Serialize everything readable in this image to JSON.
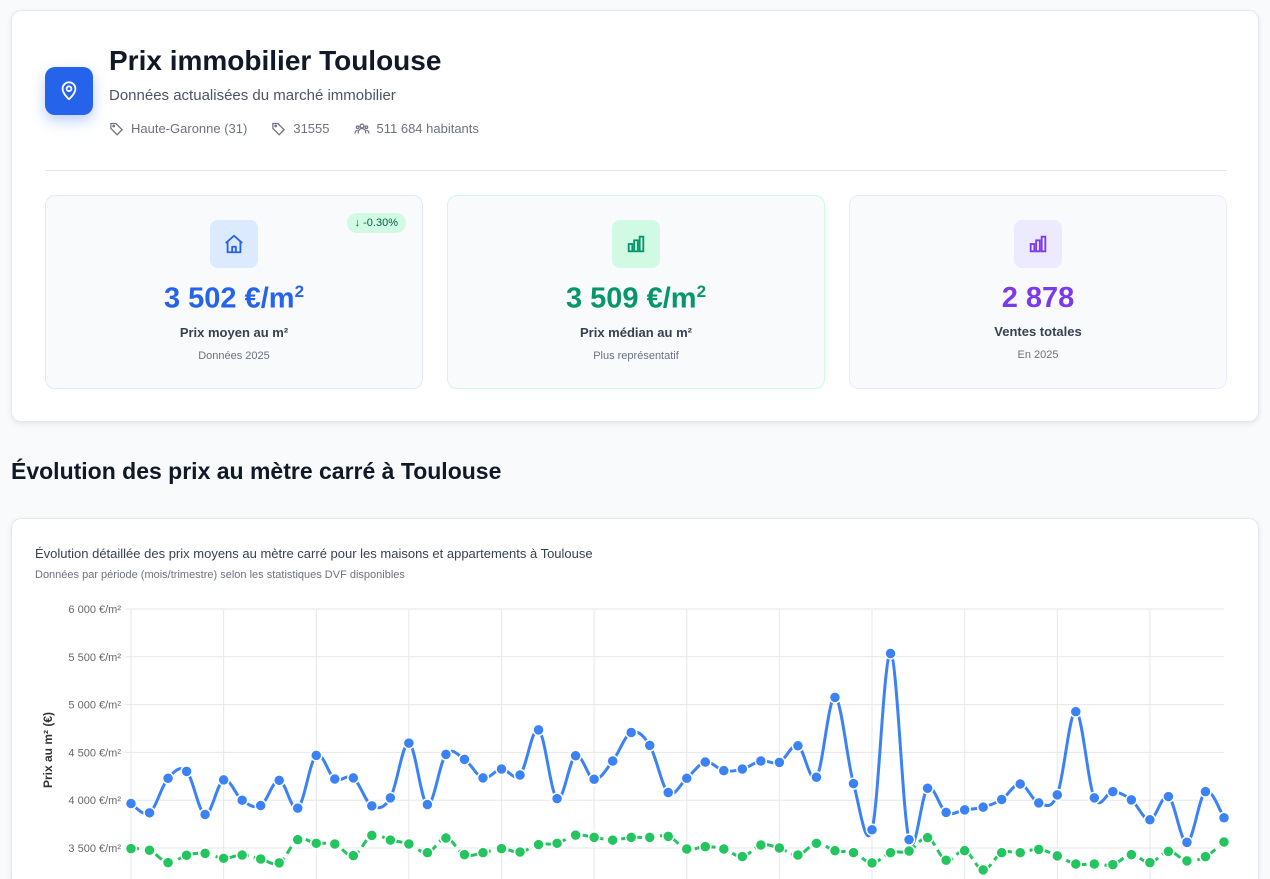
{
  "header": {
    "title": "Prix immobilier Toulouse",
    "subtitle": "Données actualisées du marché immobilier",
    "meta": {
      "department": "Haute-Garonne (31)",
      "insee_code": "31555",
      "population": "511 684 habitants"
    }
  },
  "stats": [
    {
      "value": "3 502 €/m",
      "sup": "2",
      "label": "Prix moyen au m²",
      "sub": "Données 2025",
      "badge": "↓ -0.30%",
      "color": "#2563eb",
      "icon": "home-icon"
    },
    {
      "value": "3 509 €/m",
      "sup": "2",
      "label": "Prix médian au m²",
      "sub": "Plus représentatif",
      "color": "#059669",
      "icon": "bar-chart-icon"
    },
    {
      "value": "2 878",
      "label": "Ventes totales",
      "sub": "En 2025",
      "color": "#7c3aed",
      "icon": "bar-chart-icon"
    }
  ],
  "section_title": "Évolution des prix au mètre carré à Toulouse",
  "chart_card": {
    "description": "Évolution détaillée des prix moyens au mètre carré pour les maisons et appartements à Toulouse",
    "note": "Données par période (mois/trimestre) selon les statistiques DVF disponibles"
  },
  "chart_data": {
    "type": "line",
    "ylabel": "Prix au m² (€)",
    "ylim": [
      3000,
      6000
    ],
    "yticks": [
      "6 000 €/m²",
      "5 500 €/m²",
      "5 000 €/m²",
      "4 500 €/m²",
      "4 000 €/m²",
      "3 500 €/m²"
    ],
    "ytick_values": [
      6000,
      5500,
      5000,
      4500,
      4000,
      3500
    ],
    "grid": true,
    "series": [
      {
        "color": "#3b82f6",
        "style": "solid",
        "values": [
          3965,
          3868,
          4229,
          4302,
          3851,
          4212,
          4000,
          3944,
          4208,
          3917,
          4469,
          4222,
          4233,
          3941,
          4024,
          4597,
          3955,
          4479,
          4427,
          4233,
          4326,
          4264,
          4736,
          4017,
          4465,
          4219,
          4410,
          4708,
          4573,
          4080,
          4229,
          4399,
          4309,
          4326,
          4410,
          4396,
          4569,
          4240,
          5076,
          4174,
          3691,
          5535,
          3587,
          4125,
          3872,
          3899,
          3927,
          4007,
          4170,
          3972,
          4056,
          4927,
          4024,
          4090,
          4003,
          3795,
          4038,
          3559,
          4090,
          3816
        ]
      },
      {
        "color": "#22c55e",
        "style": "dashed",
        "values": [
          3493,
          3476,
          3347,
          3424,
          3444,
          3392,
          3427,
          3385,
          3344,
          3587,
          3549,
          3542,
          3420,
          3632,
          3583,
          3542,
          3451,
          3604,
          3431,
          3451,
          3493,
          3458,
          3535,
          3549,
          3635,
          3611,
          3583,
          3611,
          3611,
          3622,
          3490,
          3514,
          3490,
          3410,
          3531,
          3500,
          3427,
          3549,
          3472,
          3451,
          3344,
          3451,
          3469,
          3608,
          3372,
          3472,
          3271,
          3451,
          3451,
          3486,
          3417,
          3333,
          3333,
          3326,
          3431,
          3347,
          3465,
          3365,
          3410,
          3563
        ]
      }
    ]
  }
}
